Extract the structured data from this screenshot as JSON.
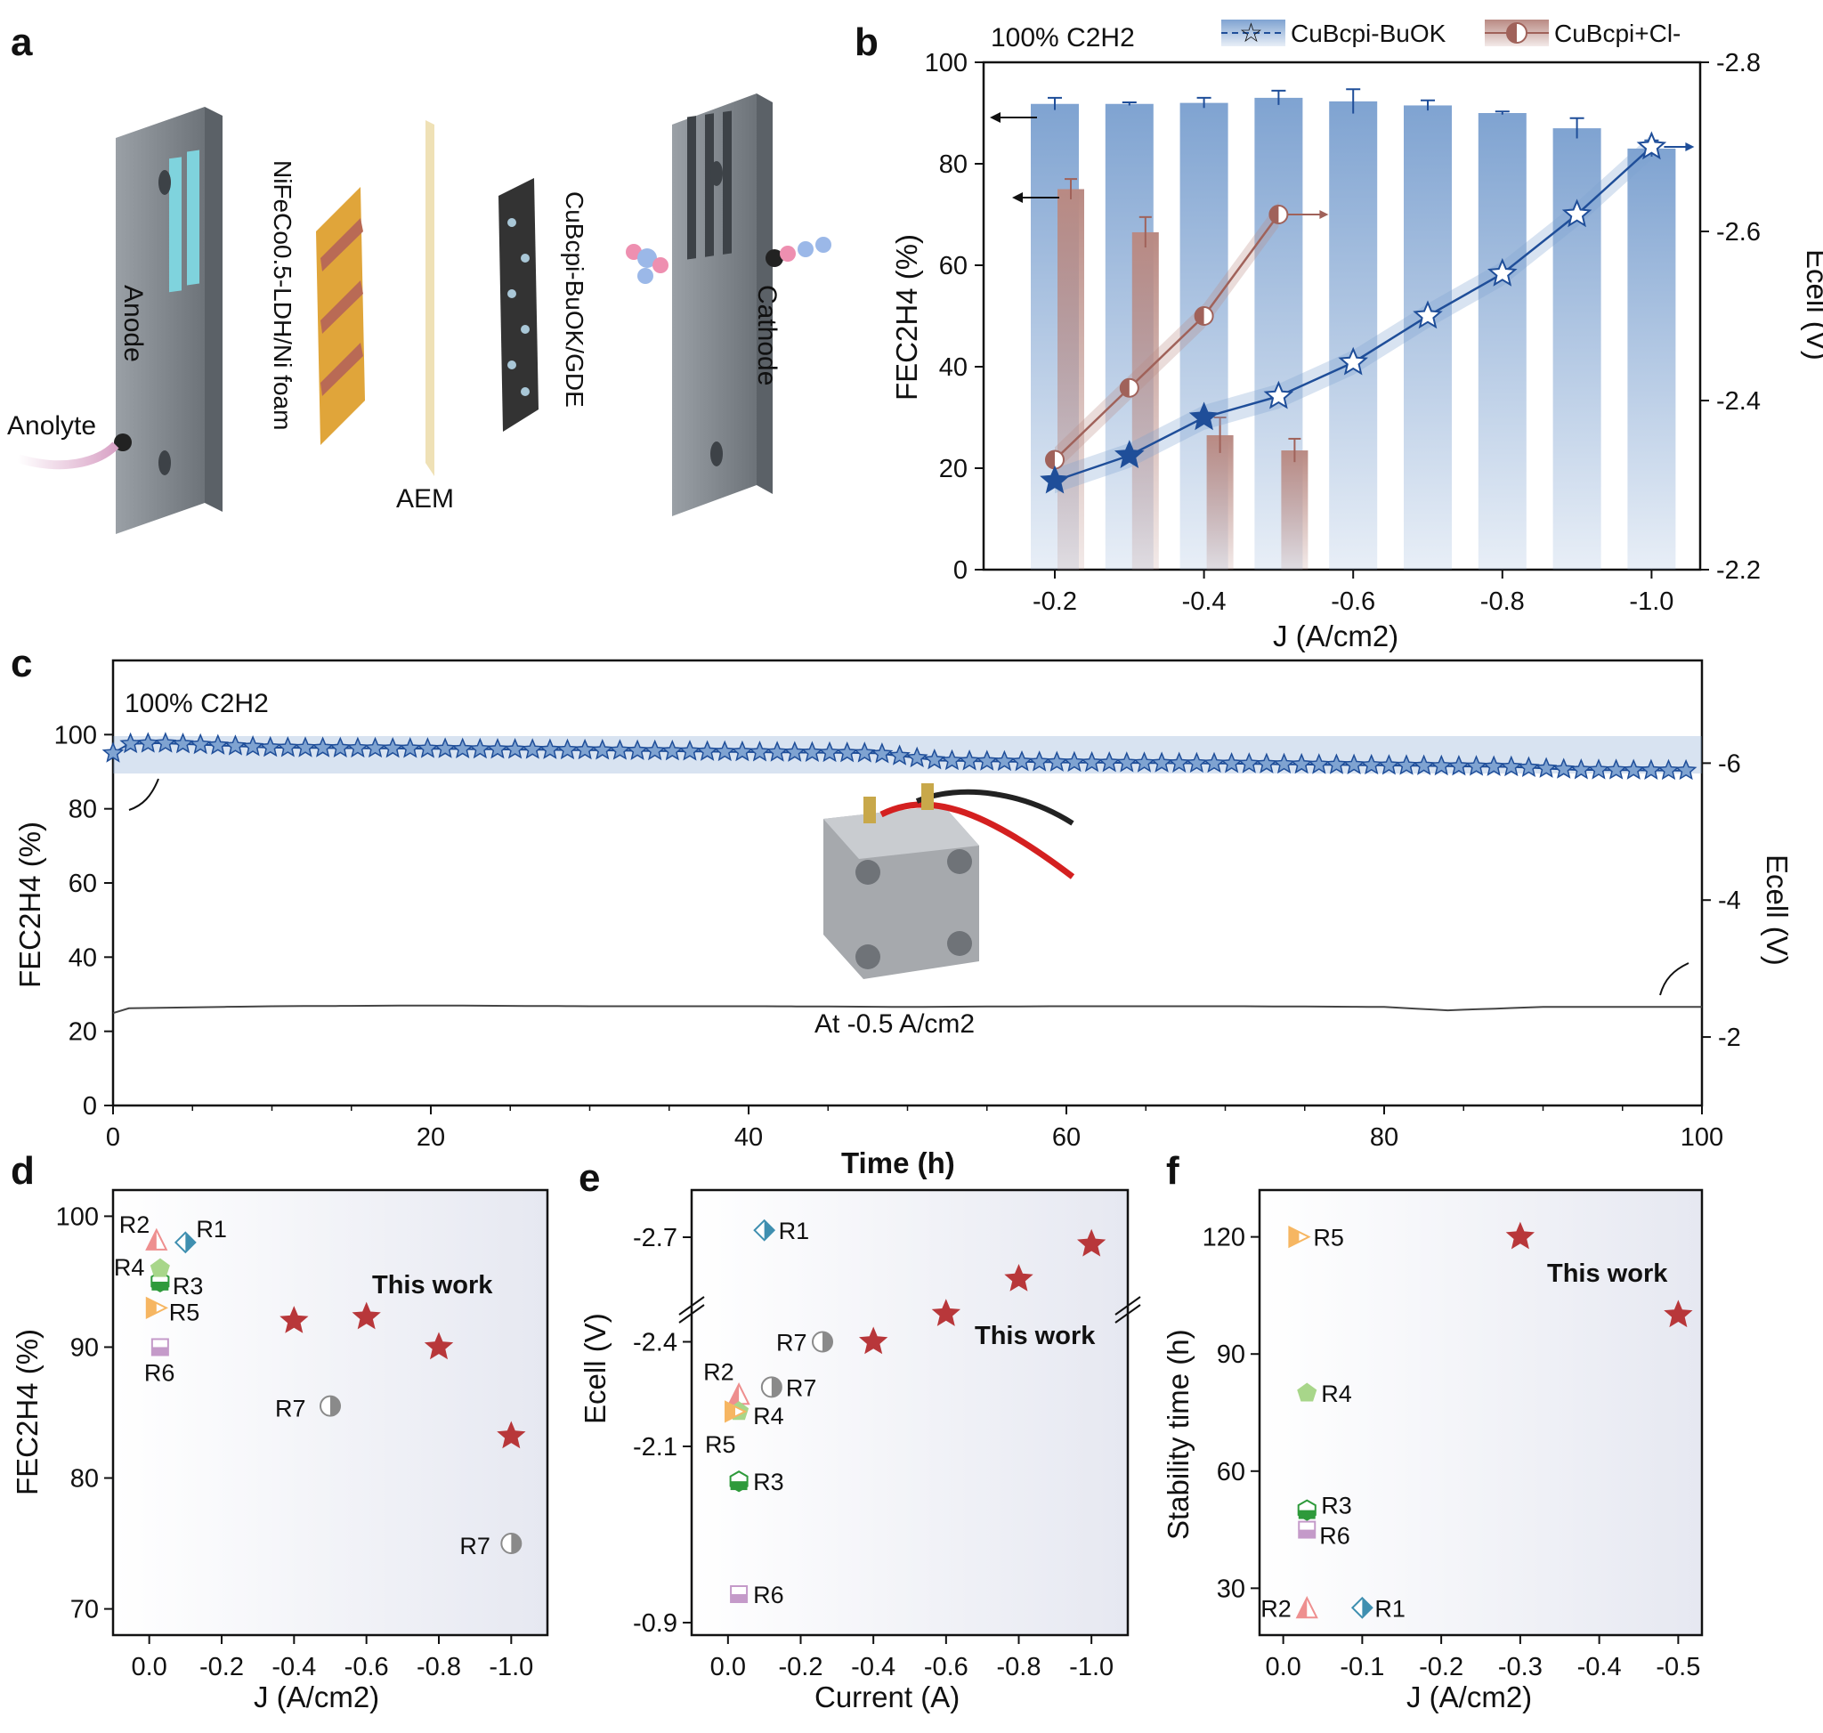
{
  "panel_labels": [
    "a",
    "b",
    "c",
    "d",
    "e",
    "f"
  ],
  "colors": {
    "blue_bar": "#7fa3d1",
    "blue_line": "#1f4e99",
    "brown_bar": "#b98a83",
    "brown_line": "#a0625a",
    "this_work": "#b8373a",
    "R1": "#3f8fb0",
    "R2": "#ee8f8f",
    "R3": "#2e9a3b",
    "R4": "#a8d68a",
    "R5": "#f6b662",
    "R6": "#c49ac9",
    "R7": "#8a8a8a"
  },
  "panel_a": {
    "labels": {
      "anode": "Anode",
      "cathode": "Cathode",
      "anolyte": "Anolyte",
      "anode_catalyst": "NiFeCo0.5-LDH/Ni foam",
      "membrane": "AEM",
      "cathode_catalyst": "CuBcpi-BuOK/GDE"
    }
  },
  "chart_data": [
    {
      "panel": "b",
      "type": "bar",
      "annotation": "100% C2H2",
      "xlabel": "J (A/cm2)",
      "ylabel": "FEC2H4 (%)",
      "y2label": "Ecell (V)",
      "ylim": [
        0,
        100
      ],
      "y2lim": [
        -2.2,
        -2.8
      ],
      "categories": [
        "-0.2",
        "-0.3",
        "-0.4",
        "-0.5",
        "-0.6",
        "-0.7",
        "-0.8",
        "-0.9",
        "-1.0"
      ],
      "x_tick_labels": [
        "-0.2",
        "-0.4",
        "-0.6",
        "-0.8",
        "-1.0"
      ],
      "y_ticks": [
        "0",
        "20",
        "40",
        "60",
        "80",
        "100"
      ],
      "y2_ticks": [
        "-2.2",
        "-2.4",
        "-2.6",
        "-2.8"
      ],
      "series": [
        {
          "name": "CuBcpi-BuOK",
          "kind": "bar",
          "axis": "left",
          "values": [
            91.8,
            91.8,
            92.0,
            93.0,
            92.3,
            91.5,
            90.0,
            87.0,
            83.0
          ],
          "errors": [
            1.2,
            0.3,
            1.0,
            1.4,
            2.4,
            1.0,
            0.3,
            2.0,
            1.6
          ]
        },
        {
          "name": "CuBcpi+Cl-",
          "kind": "bar",
          "axis": "left",
          "values": [
            75.0,
            66.5,
            26.5,
            23.5,
            null,
            null,
            null,
            null,
            null
          ],
          "errors": [
            2.0,
            3.0,
            3.5,
            2.3,
            null,
            null,
            null,
            null,
            null
          ]
        },
        {
          "name": "CuBcpi-BuOK",
          "kind": "line",
          "axis": "right",
          "values": [
            -2.305,
            -2.335,
            -2.38,
            -2.405,
            -2.445,
            -2.5,
            -2.55,
            -2.62,
            -2.7
          ]
        },
        {
          "name": "CuBcpi+Cl-",
          "kind": "line",
          "axis": "right",
          "values": [
            -2.33,
            -2.415,
            -2.5,
            -2.62,
            null,
            null,
            null,
            null,
            null
          ]
        }
      ]
    },
    {
      "panel": "c",
      "type": "line",
      "annotation": "100% C2H2",
      "inset_caption": "At -0.5 A/cm2",
      "xlabel": "Time (h)",
      "ylabel": "FEC2H4 (%)",
      "y2label": "Ecell (V)",
      "xlim": [
        0,
        100
      ],
      "ylim": [
        0,
        120
      ],
      "y2lim": [
        -1,
        -7.5
      ],
      "x_ticks": [
        "0",
        "20",
        "40",
        "60",
        "80",
        "100"
      ],
      "y_ticks": [
        "0",
        "20",
        "40",
        "60",
        "80",
        "100"
      ],
      "y2_ticks": [
        "-2",
        "-4",
        "-6"
      ],
      "series": [
        {
          "name": "FE",
          "axis": "left",
          "x": [
            0,
            1,
            3,
            6,
            10,
            20,
            30,
            40,
            48,
            52,
            60,
            70,
            80,
            88,
            92,
            99
          ],
          "y": [
            95,
            97.5,
            97.7,
            97.2,
            96.5,
            96.2,
            95.8,
            95.3,
            95,
            93,
            92.5,
            92.2,
            91.7,
            91.3,
            90.5,
            90.3
          ]
        },
        {
          "name": "Ecell",
          "axis": "right",
          "x": [
            0,
            1,
            10,
            20,
            30,
            40,
            50,
            60,
            70,
            80,
            84,
            90,
            100
          ],
          "y": [
            -2.35,
            -2.42,
            -2.45,
            -2.46,
            -2.45,
            -2.45,
            -2.44,
            -2.45,
            -2.45,
            -2.44,
            -2.39,
            -2.44,
            -2.44
          ]
        }
      ]
    },
    {
      "panel": "d",
      "type": "scatter",
      "xlabel": "J (A/cm2)",
      "ylabel": "FEC2H4 (%)",
      "xlim": [
        0.1,
        -1.1
      ],
      "ylim": [
        68,
        102
      ],
      "x_tick_labels": [
        "0.0",
        "-0.2",
        "-0.4",
        "-0.6",
        "-0.8",
        "-1.0"
      ],
      "y_ticks": [
        "70",
        "80",
        "90",
        "100"
      ],
      "legend_text": "This work",
      "series": [
        {
          "name": "This work",
          "points": [
            [
              -0.4,
              92
            ],
            [
              -0.6,
              92.3
            ],
            [
              -0.8,
              90
            ],
            [
              -1.0,
              83.2
            ]
          ]
        },
        {
          "name": "R1",
          "points": [
            [
              -0.1,
              98
            ]
          ]
        },
        {
          "name": "R2",
          "points": [
            [
              -0.02,
              98.2
            ]
          ]
        },
        {
          "name": "R3",
          "points": [
            [
              -0.03,
              95
            ]
          ]
        },
        {
          "name": "R4",
          "points": [
            [
              -0.03,
              96
            ]
          ]
        },
        {
          "name": "R5",
          "points": [
            [
              -0.02,
              93
            ]
          ]
        },
        {
          "name": "R6",
          "points": [
            [
              -0.03,
              90
            ]
          ]
        },
        {
          "name": "R7",
          "points": [
            [
              -0.5,
              85.5
            ],
            [
              -1.0,
              75
            ]
          ]
        }
      ]
    },
    {
      "panel": "e",
      "type": "scatter",
      "xlabel": "Current (A)",
      "ylabel": "Ecell (V)",
      "xlim": [
        0.1,
        -1.1
      ],
      "y_ticks": [
        "-2.7",
        "-2.4",
        "-2.1",
        "-0.9"
      ],
      "x_tick_labels": [
        "0.0",
        "-0.2",
        "-0.4",
        "-0.6",
        "-0.8",
        "-1.0"
      ],
      "legend_text": "This work",
      "series": [
        {
          "name": "This work",
          "points": [
            [
              -0.4,
              -2.4
            ],
            [
              -0.6,
              -2.48
            ],
            [
              -0.8,
              -2.58
            ],
            [
              -1.0,
              -2.68
            ]
          ]
        },
        {
          "name": "R1",
          "points": [
            [
              -0.1,
              -2.72
            ]
          ]
        },
        {
          "name": "R2",
          "points": [
            [
              -0.03,
              -2.25
            ]
          ]
        },
        {
          "name": "R3",
          "points": [
            [
              -0.03,
              -2.0
            ]
          ]
        },
        {
          "name": "R4",
          "points": [
            [
              -0.03,
              -2.2
            ]
          ]
        },
        {
          "name": "R5",
          "points": [
            [
              -0.02,
              -2.2
            ]
          ]
        },
        {
          "name": "R6",
          "points": [
            [
              -0.03,
              -0.98
            ]
          ]
        },
        {
          "name": "R7",
          "points": [
            [
              -0.26,
              -2.4
            ],
            [
              -0.12,
              -2.27
            ]
          ]
        }
      ]
    },
    {
      "panel": "f",
      "type": "scatter",
      "xlabel": "J (A/cm2)",
      "ylabel": "Stability time (h)",
      "xlim": [
        0.03,
        -0.53
      ],
      "ylim": [
        18,
        132
      ],
      "x_tick_labels": [
        "0.0",
        "-0.1",
        "-0.2",
        "-0.3",
        "-0.4",
        "-0.5"
      ],
      "y_ticks": [
        "30",
        "60",
        "90",
        "120"
      ],
      "legend_text": "This work",
      "series": [
        {
          "name": "This work",
          "points": [
            [
              -0.3,
              120
            ],
            [
              -0.5,
              100
            ]
          ]
        },
        {
          "name": "R1",
          "points": [
            [
              -0.1,
              25
            ]
          ]
        },
        {
          "name": "R2",
          "points": [
            [
              -0.03,
              25
            ]
          ]
        },
        {
          "name": "R3",
          "points": [
            [
              -0.03,
              50
            ]
          ]
        },
        {
          "name": "R4",
          "points": [
            [
              -0.03,
              80
            ]
          ]
        },
        {
          "name": "R5",
          "points": [
            [
              -0.02,
              120
            ]
          ]
        },
        {
          "name": "R6",
          "points": [
            [
              -0.03,
              45
            ]
          ]
        }
      ]
    }
  ]
}
